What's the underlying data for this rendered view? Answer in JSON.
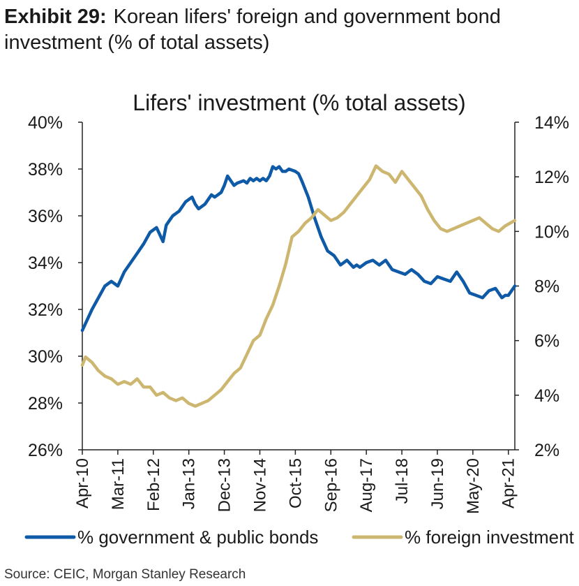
{
  "exhibit": {
    "label": "Exhibit 29:",
    "title": "Korean lifers' foreign and government bond investment (% of total assets)"
  },
  "source": "Source: CEIC, Morgan Stanley Research",
  "colors": {
    "gov": "#0e5aa7",
    "foreign": "#cdb770",
    "axis": "#222222"
  },
  "chart_data": {
    "type": "line",
    "title": "Lifers' investment (% total assets)",
    "x_tick_labels": [
      "Apr-10",
      "Mar-11",
      "Feb-12",
      "Jan-13",
      "Dec-13",
      "Nov-14",
      "Oct-15",
      "Sep-16",
      "Aug-17",
      "Jul-18",
      "Jun-19",
      "May-20",
      "Apr-21"
    ],
    "y_left": {
      "min": 26,
      "max": 40,
      "step": 2,
      "tick_labels": [
        "26%",
        "28%",
        "30%",
        "32%",
        "34%",
        "36%",
        "38%",
        "40%"
      ]
    },
    "y_right": {
      "min": 2,
      "max": 14,
      "step": 2,
      "tick_labels": [
        "2%",
        "4%",
        "6%",
        "8%",
        "10%",
        "12%",
        "14%"
      ]
    },
    "x_range": [
      0,
      134
    ],
    "legend": {
      "placement": "bottom"
    },
    "series": [
      {
        "name": "% government & public bonds",
        "axis": "left",
        "color": "#0e5aa7",
        "x": [
          0,
          3,
          5,
          7,
          9,
          11,
          12,
          13,
          15,
          17,
          19,
          21,
          23,
          25,
          26,
          27,
          28,
          30,
          32,
          34,
          35,
          36,
          38,
          40,
          41,
          42,
          43,
          44,
          45,
          46,
          47,
          48,
          50,
          51,
          52,
          53,
          54,
          55,
          56,
          57,
          58,
          59,
          60,
          61,
          62,
          63,
          64,
          66,
          67,
          68,
          70,
          72,
          74,
          76,
          78,
          80,
          82,
          84,
          85,
          86,
          88,
          90,
          92,
          94,
          96,
          98,
          100,
          102,
          104,
          106,
          108,
          110,
          112,
          114,
          116,
          118,
          120,
          122,
          124,
          126,
          128,
          130,
          131,
          132,
          133,
          134
        ],
        "y": [
          31.1,
          32.0,
          32.5,
          33.0,
          33.2,
          33.0,
          33.3,
          33.6,
          34.0,
          34.4,
          34.8,
          35.3,
          35.5,
          34.9,
          35.6,
          35.8,
          36.0,
          36.2,
          36.6,
          36.8,
          36.5,
          36.3,
          36.5,
          36.9,
          36.8,
          36.9,
          37.0,
          37.3,
          37.7,
          37.5,
          37.3,
          37.4,
          37.5,
          37.4,
          37.6,
          37.5,
          37.6,
          37.5,
          37.6,
          37.5,
          37.7,
          38.1,
          38.0,
          38.1,
          37.9,
          37.9,
          38.0,
          37.9,
          37.8,
          37.5,
          36.8,
          35.9,
          35.1,
          34.5,
          34.3,
          33.9,
          34.1,
          33.8,
          33.9,
          33.8,
          34.0,
          34.1,
          33.9,
          34.1,
          33.7,
          33.6,
          33.5,
          33.7,
          33.5,
          33.2,
          33.1,
          33.4,
          33.3,
          33.2,
          33.6,
          33.2,
          32.7,
          32.6,
          32.5,
          32.8,
          32.9,
          32.5,
          32.6,
          32.6,
          32.8,
          33.0
        ]
      },
      {
        "name": "% foreign investment",
        "axis": "right",
        "color": "#cdb770",
        "x": [
          0,
          1,
          3,
          5,
          7,
          9,
          11,
          13,
          15,
          17,
          19,
          21,
          23,
          25,
          27,
          29,
          31,
          33,
          35,
          37,
          39,
          41,
          43,
          45,
          47,
          49,
          51,
          53,
          55,
          57,
          59,
          61,
          63,
          65,
          67,
          69,
          71,
          73,
          75,
          77,
          79,
          81,
          83,
          85,
          87,
          89,
          91,
          93,
          95,
          97,
          99,
          101,
          103,
          105,
          107,
          109,
          111,
          113,
          115,
          117,
          119,
          121,
          123,
          125,
          127,
          129,
          131,
          134
        ],
        "y": [
          5.1,
          5.4,
          5.2,
          4.9,
          4.7,
          4.6,
          4.4,
          4.5,
          4.4,
          4.6,
          4.3,
          4.3,
          4.0,
          4.1,
          3.9,
          3.8,
          3.9,
          3.7,
          3.6,
          3.7,
          3.8,
          4.0,
          4.2,
          4.5,
          4.8,
          5.0,
          5.5,
          6.0,
          6.2,
          6.8,
          7.3,
          8.0,
          8.8,
          9.8,
          10.0,
          10.3,
          10.5,
          10.8,
          10.6,
          10.4,
          10.5,
          10.7,
          11.0,
          11.3,
          11.6,
          11.9,
          12.4,
          12.2,
          12.1,
          11.8,
          12.2,
          11.9,
          11.6,
          11.3,
          10.8,
          10.4,
          10.1,
          10.0,
          10.1,
          10.2,
          10.3,
          10.4,
          10.5,
          10.3,
          10.1,
          10.0,
          10.2,
          10.4
        ]
      }
    ]
  }
}
